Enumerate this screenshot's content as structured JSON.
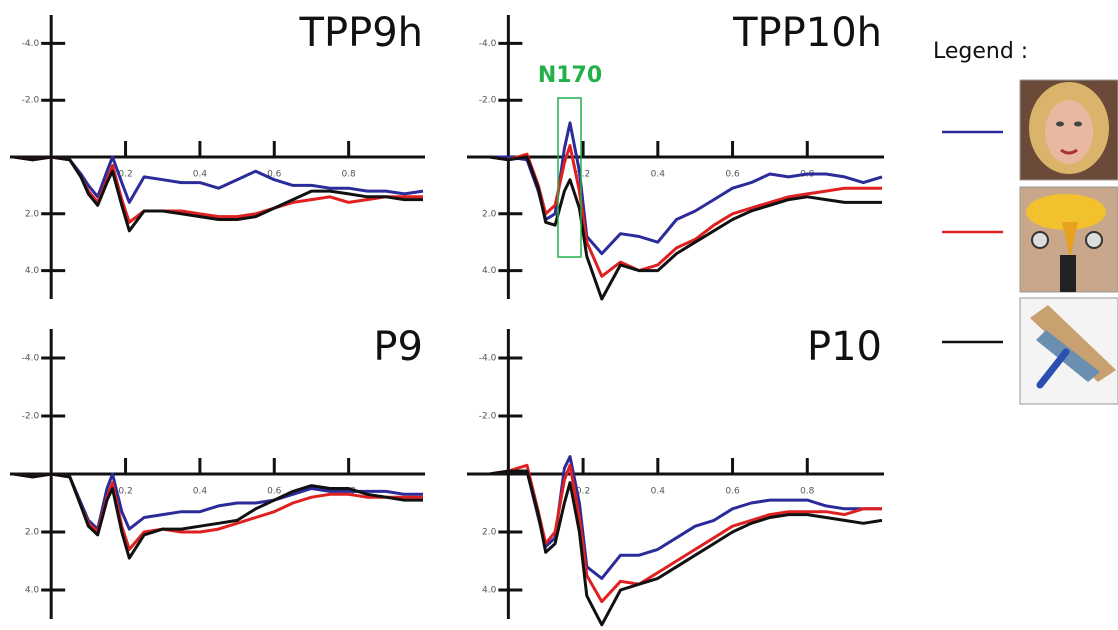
{
  "legend": {
    "title": "Legend :"
  },
  "chart_data": [
    {
      "type": "line",
      "title": "TPP9h",
      "y_inverted": true,
      "x": [
        -0.1,
        -0.05,
        0,
        0.05,
        0.08,
        0.1,
        0.125,
        0.15,
        0.165,
        0.19,
        0.21,
        0.25,
        0.3,
        0.35,
        0.4,
        0.45,
        0.5,
        0.55,
        0.6,
        0.65,
        0.7,
        0.75,
        0.8,
        0.85,
        0.9,
        0.95,
        1.0
      ],
      "xlim": [
        -0.1,
        1.0
      ],
      "ylim": [
        -5,
        5
      ],
      "xticks": [
        0.2,
        0.4,
        0.6,
        0.8
      ],
      "yticks": [
        {
          "value": -4,
          "label": "-4.0"
        },
        {
          "value": -2,
          "label": "-2.0"
        },
        {
          "value": 2,
          "label": "2.0"
        },
        {
          "value": 4,
          "label": "4.0"
        }
      ],
      "series": [
        {
          "color": "#2b2b9a",
          "values": [
            0,
            0.1,
            0,
            0.1,
            0.6,
            1.0,
            1.4,
            0.5,
            0,
            0.9,
            1.6,
            0.7,
            0.8,
            0.9,
            0.9,
            1.1,
            0.8,
            0.5,
            0.8,
            1.0,
            1.0,
            1.1,
            1.1,
            1.2,
            1.2,
            1.3,
            1.2
          ]
        },
        {
          "color": "#e02020",
          "values": [
            0,
            0.1,
            0,
            0.1,
            0.7,
            1.2,
            1.6,
            0.8,
            0.3,
            1.5,
            2.3,
            1.9,
            1.9,
            1.9,
            2.0,
            2.1,
            2.1,
            2.0,
            1.8,
            1.6,
            1.5,
            1.4,
            1.6,
            1.5,
            1.4,
            1.4,
            1.4
          ]
        },
        {
          "color": "#111111",
          "values": [
            0,
            0.1,
            0,
            0.1,
            0.7,
            1.3,
            1.7,
            0.9,
            0.5,
            1.7,
            2.6,
            1.9,
            1.9,
            2.0,
            2.1,
            2.2,
            2.2,
            2.1,
            1.8,
            1.5,
            1.2,
            1.2,
            1.3,
            1.4,
            1.4,
            1.5,
            1.5
          ]
        }
      ]
    },
    {
      "type": "line",
      "title": "TPP10h",
      "annotation": "N170",
      "y_inverted": true,
      "x": [
        -0.1,
        -0.05,
        0,
        0.05,
        0.08,
        0.1,
        0.125,
        0.15,
        0.165,
        0.19,
        0.21,
        0.25,
        0.3,
        0.35,
        0.4,
        0.45,
        0.5,
        0.55,
        0.6,
        0.65,
        0.7,
        0.75,
        0.8,
        0.85,
        0.9,
        0.95,
        1.0
      ],
      "xlim": [
        -0.1,
        1.0
      ],
      "ylim": [
        -5,
        5
      ],
      "xticks": [
        0.2,
        0.4,
        0.6,
        0.8
      ],
      "yticks": [
        {
          "value": -4,
          "label": "-4.0"
        },
        {
          "value": -2,
          "label": "-2.0"
        },
        {
          "value": 2,
          "label": "2.0"
        },
        {
          "value": 4,
          "label": "4.0"
        }
      ],
      "series": [
        {
          "color": "#2b2b9a",
          "values": [
            0,
            0,
            0,
            0.1,
            1.2,
            2.2,
            2.0,
            -0.3,
            -1.2,
            0.5,
            2.8,
            3.4,
            2.7,
            2.8,
            3.0,
            2.2,
            1.9,
            1.5,
            1.1,
            0.9,
            0.6,
            0.7,
            0.6,
            0.6,
            0.7,
            0.9,
            0.7
          ]
        },
        {
          "color": "#e02020",
          "values": [
            0,
            0,
            0.1,
            -0.1,
            1.0,
            2.0,
            1.7,
            0.2,
            -0.4,
            1.2,
            3.0,
            4.2,
            3.7,
            4.0,
            3.8,
            3.2,
            2.9,
            2.4,
            2.0,
            1.8,
            1.6,
            1.4,
            1.3,
            1.2,
            1.1,
            1.1,
            1.1
          ]
        },
        {
          "color": "#111111",
          "values": [
            0,
            0,
            0.1,
            0,
            1.1,
            2.3,
            2.4,
            1.2,
            0.8,
            1.8,
            3.5,
            5.0,
            3.8,
            4.0,
            4.0,
            3.4,
            3.0,
            2.6,
            2.2,
            1.9,
            1.7,
            1.5,
            1.4,
            1.5,
            1.6,
            1.6,
            1.6
          ]
        }
      ]
    },
    {
      "type": "line",
      "title": "P9",
      "y_inverted": true,
      "x": [
        -0.1,
        -0.05,
        0,
        0.05,
        0.08,
        0.1,
        0.125,
        0.15,
        0.165,
        0.19,
        0.21,
        0.25,
        0.3,
        0.35,
        0.4,
        0.45,
        0.5,
        0.55,
        0.6,
        0.65,
        0.7,
        0.75,
        0.8,
        0.85,
        0.9,
        0.95,
        1.0
      ],
      "xlim": [
        -0.1,
        1.0
      ],
      "ylim": [
        -5,
        5
      ],
      "xticks": [
        0.2,
        0.4,
        0.6,
        0.8
      ],
      "yticks": [
        {
          "value": -4,
          "label": "-4.0"
        },
        {
          "value": -2,
          "label": "-2.0"
        },
        {
          "value": 2,
          "label": "2.0"
        },
        {
          "value": 4,
          "label": "4.0"
        }
      ],
      "series": [
        {
          "color": "#2b2b9a",
          "values": [
            0,
            0.1,
            0,
            0.1,
            1.0,
            1.6,
            1.9,
            0.5,
            0,
            1.3,
            1.9,
            1.5,
            1.4,
            1.3,
            1.3,
            1.1,
            1.0,
            1.0,
            0.9,
            0.7,
            0.5,
            0.6,
            0.6,
            0.6,
            0.6,
            0.7,
            0.7
          ]
        },
        {
          "color": "#e02020",
          "values": [
            0,
            0.1,
            0,
            0.1,
            1.1,
            1.7,
            2.0,
            0.8,
            0.3,
            1.8,
            2.6,
            2.0,
            1.9,
            2.0,
            2.0,
            1.9,
            1.7,
            1.5,
            1.3,
            1.0,
            0.8,
            0.7,
            0.7,
            0.8,
            0.8,
            0.8,
            0.8
          ]
        },
        {
          "color": "#111111",
          "values": [
            0,
            0.1,
            0,
            0.1,
            1.1,
            1.8,
            2.1,
            0.9,
            0.5,
            2.0,
            2.9,
            2.1,
            1.9,
            1.9,
            1.8,
            1.7,
            1.6,
            1.2,
            0.9,
            0.6,
            0.4,
            0.5,
            0.5,
            0.7,
            0.8,
            0.9,
            0.9
          ]
        }
      ]
    },
    {
      "type": "line",
      "title": "P10",
      "y_inverted": true,
      "x": [
        -0.1,
        -0.05,
        0,
        0.05,
        0.08,
        0.1,
        0.125,
        0.15,
        0.165,
        0.19,
        0.21,
        0.25,
        0.3,
        0.35,
        0.4,
        0.45,
        0.5,
        0.55,
        0.6,
        0.65,
        0.7,
        0.75,
        0.8,
        0.85,
        0.9,
        0.95,
        1.0
      ],
      "xlim": [
        -0.1,
        1.0
      ],
      "ylim": [
        -5,
        5
      ],
      "xticks": [
        0.2,
        0.4,
        0.6,
        0.8
      ],
      "yticks": [
        {
          "value": -4,
          "label": "-4.0"
        },
        {
          "value": -2,
          "label": "-2.0"
        },
        {
          "value": 2,
          "label": "2.0"
        },
        {
          "value": 4,
          "label": "4.0"
        }
      ],
      "series": [
        {
          "color": "#2b2b9a",
          "values": [
            0,
            0,
            -0.1,
            -0.1,
            1.5,
            2.5,
            2.2,
            -0.2,
            -0.6,
            1.0,
            3.2,
            3.6,
            2.8,
            2.8,
            2.6,
            2.2,
            1.8,
            1.6,
            1.2,
            1.0,
            0.9,
            0.9,
            0.9,
            1.1,
            1.2,
            1.2,
            1.2
          ]
        },
        {
          "color": "#e02020",
          "values": [
            0,
            0,
            -0.1,
            -0.3,
            1.3,
            2.4,
            2.0,
            0.2,
            -0.3,
            1.5,
            3.5,
            4.4,
            3.7,
            3.8,
            3.4,
            3.0,
            2.6,
            2.2,
            1.8,
            1.6,
            1.4,
            1.3,
            1.3,
            1.3,
            1.4,
            1.2,
            1.2
          ]
        },
        {
          "color": "#111111",
          "values": [
            0,
            0,
            -0.1,
            -0.1,
            1.4,
            2.7,
            2.4,
            1.0,
            0.3,
            2.0,
            4.2,
            5.2,
            4.0,
            3.8,
            3.6,
            3.2,
            2.8,
            2.4,
            2.0,
            1.7,
            1.5,
            1.4,
            1.4,
            1.5,
            1.6,
            1.7,
            1.6
          ]
        }
      ]
    }
  ]
}
